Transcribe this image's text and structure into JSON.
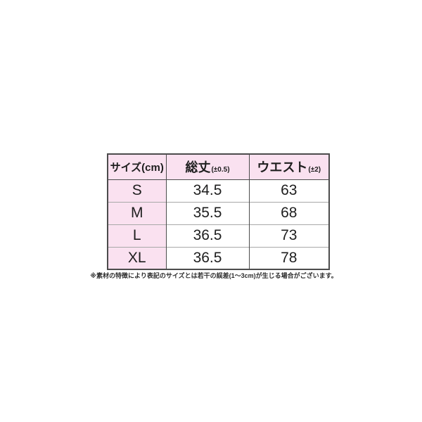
{
  "page": {
    "background": "#ffffff"
  },
  "table": {
    "header": {
      "size_label": "サイズ(cm)",
      "columns": [
        {
          "label": "総丈",
          "tolerance": "(±0.5)"
        },
        {
          "label": "ウエスト",
          "tolerance": "(±2)"
        }
      ]
    },
    "rows": [
      {
        "size": "S",
        "length": "34.5",
        "waist": "63"
      },
      {
        "size": "M",
        "length": "35.5",
        "waist": "68"
      },
      {
        "size": "L",
        "length": "36.5",
        "waist": "73"
      },
      {
        "size": "XL",
        "length": "36.5",
        "waist": "78"
      }
    ],
    "colors": {
      "header_bg": "#fae1f0",
      "row_label_bg": "#fae1f0",
      "cell_bg": "#ffffff",
      "border_dark": "#4c4c4c",
      "border_light": "#a8a8a8",
      "text": "#1e1e1e"
    }
  },
  "footnote": {
    "text": "※素材の特徴により表記のサイズとは若干の誤差(1～3cm)が生じる場合がございます。"
  },
  "chart_data": {
    "type": "table",
    "title": "サイズ(cm)",
    "columns": [
      "サイズ(cm)",
      "総丈(±0.5)",
      "ウエスト(±2)"
    ],
    "rows": [
      [
        "S",
        34.5,
        63
      ],
      [
        "M",
        35.5,
        68
      ],
      [
        "L",
        36.5,
        73
      ],
      [
        "XL",
        36.5,
        78
      ]
    ]
  }
}
